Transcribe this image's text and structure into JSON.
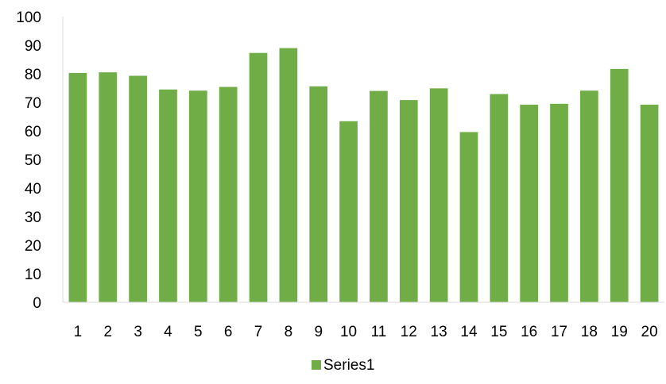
{
  "chart_data": {
    "type": "bar",
    "title": "",
    "xlabel": "",
    "ylabel": "",
    "categories": [
      "1",
      "2",
      "3",
      "4",
      "5",
      "6",
      "7",
      "8",
      "9",
      "10",
      "11",
      "12",
      "13",
      "14",
      "15",
      "16",
      "17",
      "18",
      "19",
      "20"
    ],
    "series": [
      {
        "name": "Series1",
        "color": "#70ad47",
        "values": [
          80.3,
          80.5,
          79.3,
          74.5,
          74.1,
          75.4,
          87.3,
          89.0,
          75.6,
          63.4,
          74.0,
          70.8,
          74.9,
          59.6,
          72.9,
          69.2,
          69.5,
          74.1,
          81.7,
          69.2
        ]
      }
    ],
    "ylim": [
      0,
      100
    ],
    "yticks": [
      0,
      10,
      20,
      30,
      40,
      50,
      60,
      70,
      80,
      90,
      100
    ],
    "grid": false,
    "legend": {
      "position": "bottom",
      "entries": [
        "Series1"
      ]
    },
    "colors": {
      "bar": "#70ad47",
      "axis": "#d9d9d9",
      "text": "#000000"
    }
  }
}
